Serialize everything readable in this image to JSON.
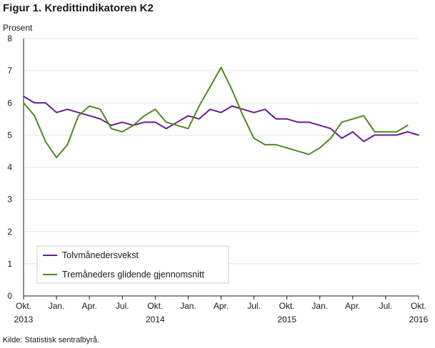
{
  "figure": {
    "title": "Figur 1. Kredittindikatoren K2",
    "source": "Kilde: Statistisk sentralbyrå."
  },
  "chart_data": {
    "type": "line",
    "ylabel": "Prosent",
    "ylim": [
      0,
      8
    ],
    "yticks": [
      0,
      1,
      2,
      3,
      4,
      5,
      6,
      7,
      8
    ],
    "grid": "horizontal",
    "legend_position": "bottom-left",
    "x": [
      "2013-10",
      "2013-11",
      "2013-12",
      "2014-01",
      "2014-02",
      "2014-03",
      "2014-04",
      "2014-05",
      "2014-06",
      "2014-07",
      "2014-08",
      "2014-09",
      "2014-10",
      "2014-11",
      "2014-12",
      "2015-01",
      "2015-02",
      "2015-03",
      "2015-04",
      "2015-05",
      "2015-06",
      "2015-07",
      "2015-08",
      "2015-09",
      "2015-10",
      "2015-11",
      "2015-12",
      "2016-01",
      "2016-02",
      "2016-03",
      "2016-04",
      "2016-05",
      "2016-06",
      "2016-07",
      "2016-08",
      "2016-09",
      "2016-10"
    ],
    "xticks": [
      {
        "label": "Okt.",
        "year": "2013",
        "index": 0
      },
      {
        "label": "Jan.",
        "year": "",
        "index": 3
      },
      {
        "label": "Apr.",
        "year": "",
        "index": 6
      },
      {
        "label": "Jul.",
        "year": "",
        "index": 9
      },
      {
        "label": "Okt.",
        "year": "2014",
        "index": 12
      },
      {
        "label": "Jan.",
        "year": "",
        "index": 15
      },
      {
        "label": "Apr.",
        "year": "",
        "index": 18
      },
      {
        "label": "Jul.",
        "year": "",
        "index": 21
      },
      {
        "label": "Okt.",
        "year": "2015",
        "index": 24
      },
      {
        "label": "Jan.",
        "year": "",
        "index": 27
      },
      {
        "label": "Apr.",
        "year": "",
        "index": 30
      },
      {
        "label": "Jul.",
        "year": "",
        "index": 33
      },
      {
        "label": "Okt.",
        "year": "2016",
        "index": 36
      }
    ],
    "series": [
      {
        "name": "Tolvmånedersvekst",
        "color": "#6c1b8f",
        "values": [
          6.2,
          6.0,
          6.0,
          5.7,
          5.8,
          5.7,
          5.6,
          5.5,
          5.3,
          5.4,
          5.3,
          5.4,
          5.4,
          5.2,
          5.4,
          5.6,
          5.5,
          5.8,
          5.7,
          5.9,
          5.8,
          5.7,
          5.8,
          5.5,
          5.5,
          5.4,
          5.4,
          5.3,
          5.2,
          4.9,
          5.1,
          4.8,
          5.0,
          5.0,
          5.0,
          5.1,
          5.0
        ]
      },
      {
        "name": "Tremåneders glidende gjennomsnitt",
        "color": "#4e8a1c",
        "values": [
          6.0,
          5.6,
          4.8,
          4.3,
          4.7,
          5.6,
          5.9,
          5.8,
          5.2,
          5.1,
          5.3,
          5.6,
          5.8,
          5.4,
          5.3,
          5.2,
          5.9,
          6.5,
          7.1,
          6.4,
          5.6,
          4.9,
          4.7,
          4.7,
          4.6,
          4.5,
          4.4,
          4.6,
          4.9,
          5.4,
          5.5,
          5.6,
          5.1,
          5.1,
          5.1,
          5.3,
          null
        ]
      }
    ]
  }
}
